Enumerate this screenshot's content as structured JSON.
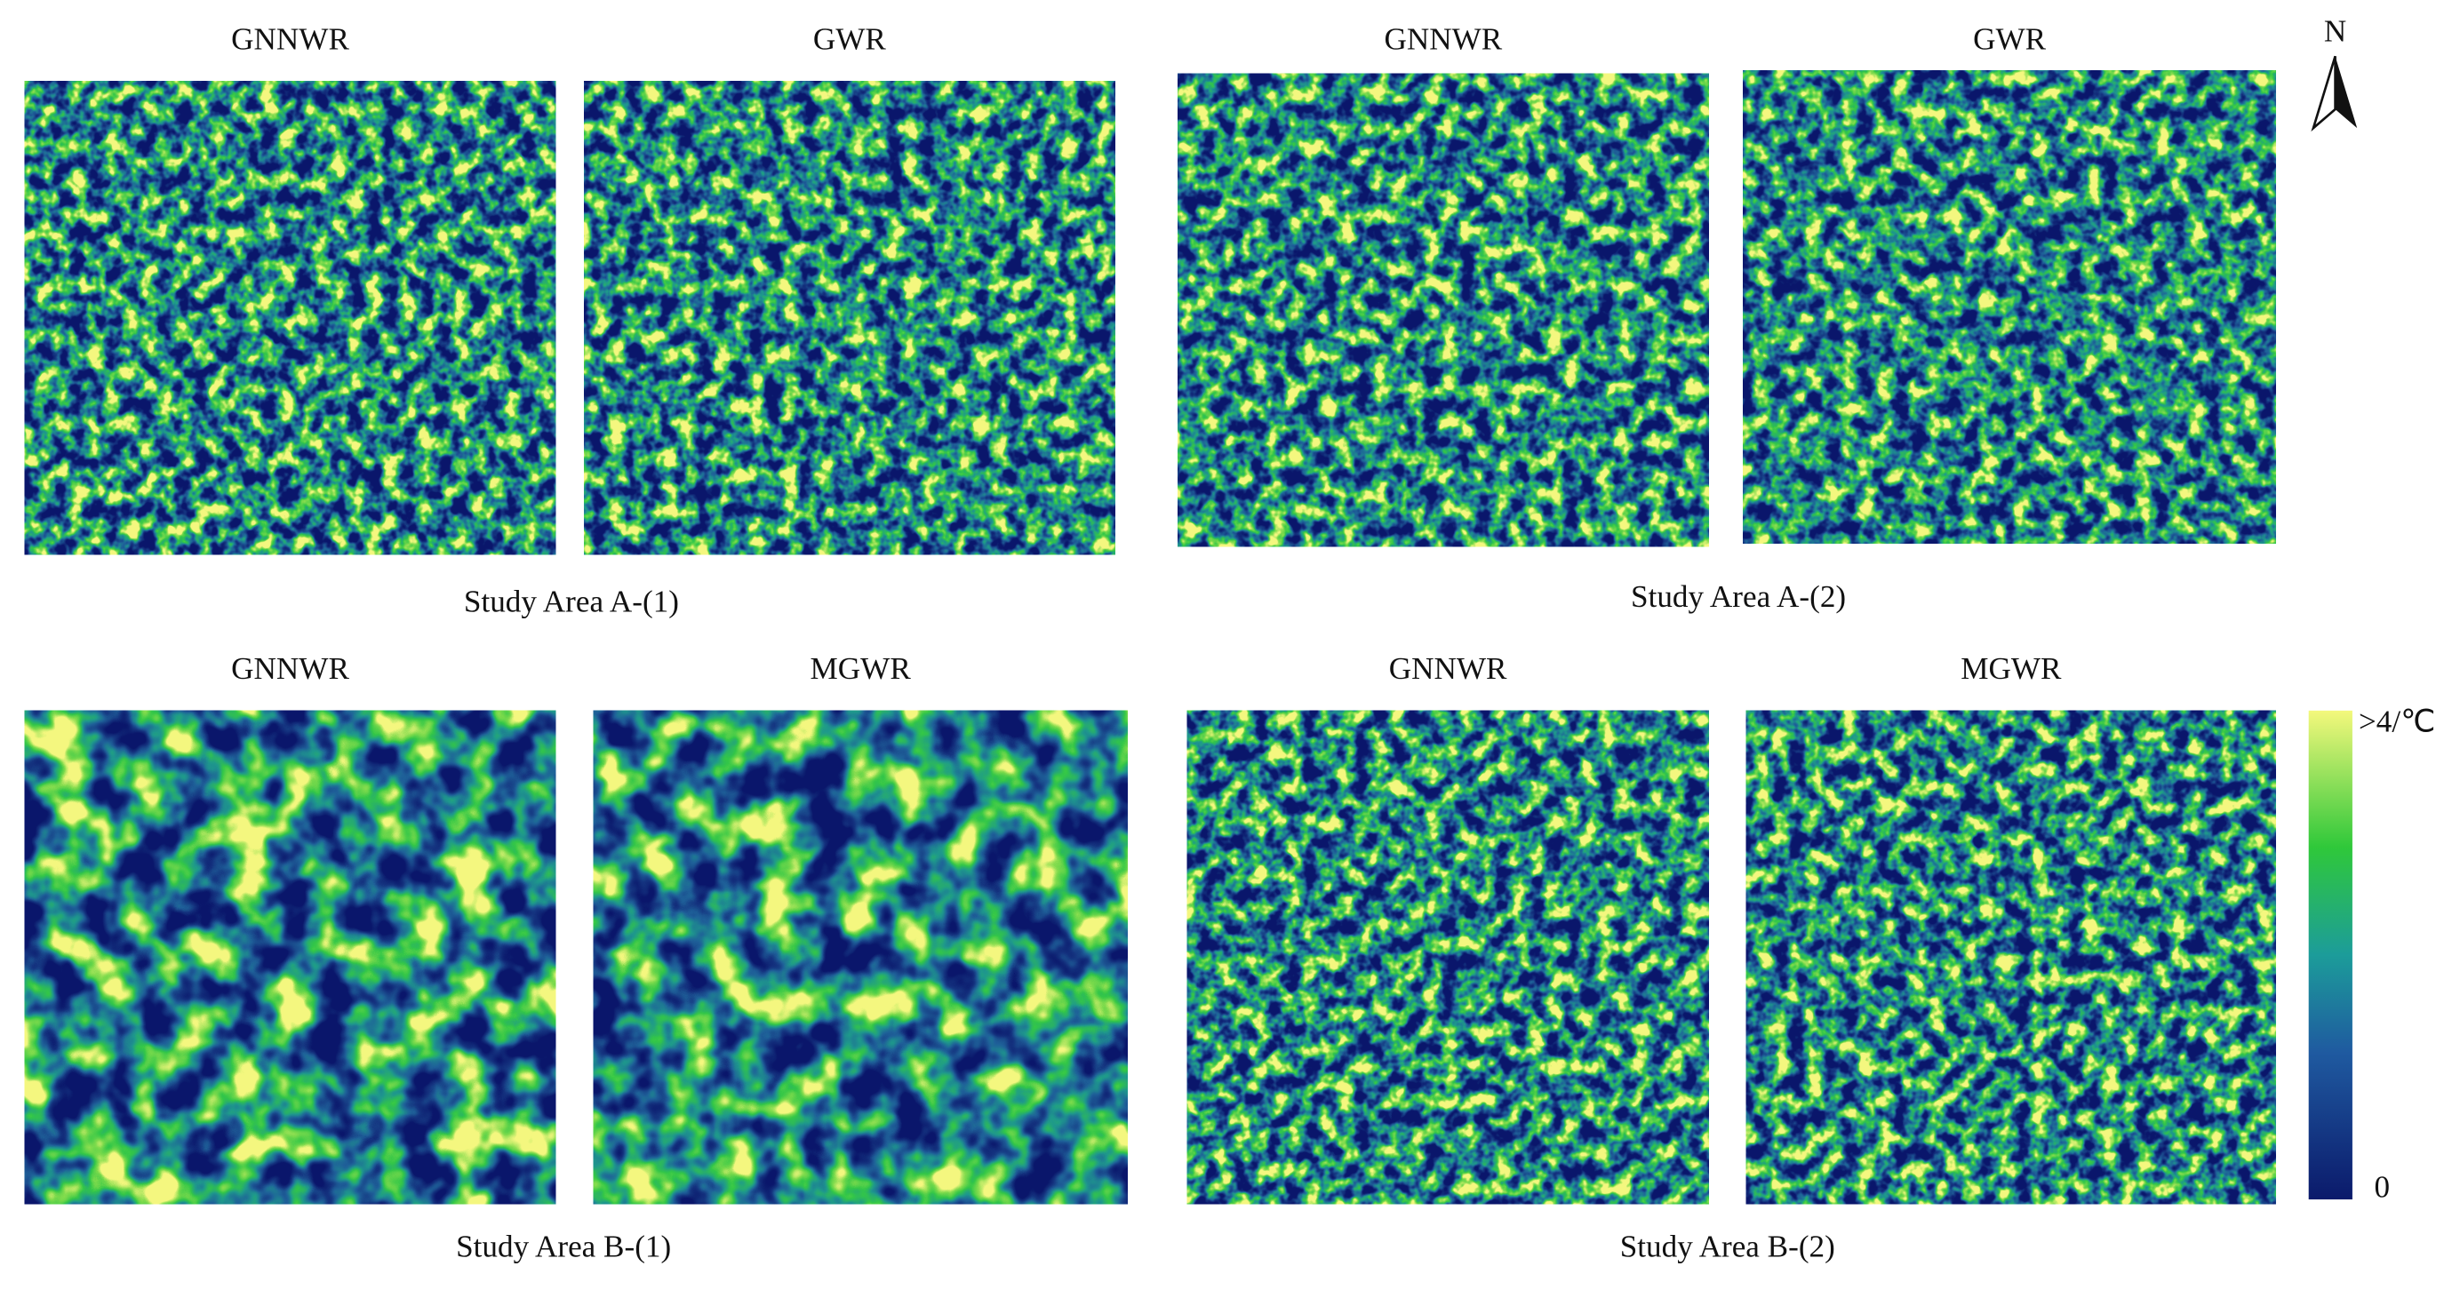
{
  "north": "N",
  "groups": [
    {
      "caption": "Study Area A-(1)",
      "panels": [
        {
          "title": "GNNWR"
        },
        {
          "title": "GWR"
        }
      ]
    },
    {
      "caption": "Study Area A-(2)",
      "panels": [
        {
          "title": "GNNWR"
        },
        {
          "title": "GWR"
        }
      ]
    },
    {
      "caption": "Study Area B-(1)",
      "panels": [
        {
          "title": "GNNWR"
        },
        {
          "title": "MGWR"
        }
      ]
    },
    {
      "caption": "Study Area B-(2)",
      "panels": [
        {
          "title": "GNNWR"
        },
        {
          "title": "MGWR"
        }
      ]
    }
  ],
  "legend": {
    "max_label": ">4/℃",
    "min_label": "0"
  }
}
